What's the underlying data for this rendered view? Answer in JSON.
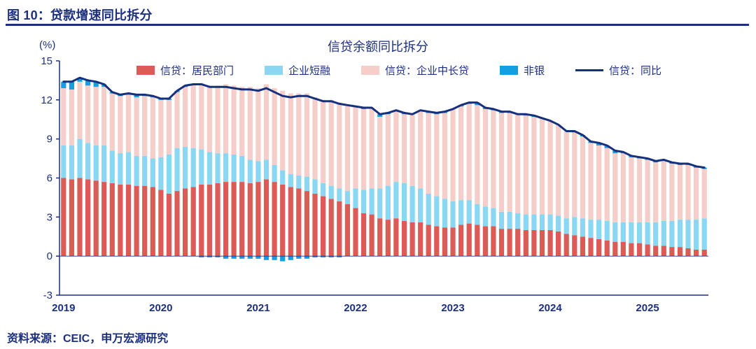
{
  "header": {
    "title": "图 10：贷款增速同比拆分"
  },
  "source": {
    "text": "资料来源：CEIC，申万宏源研究"
  },
  "chart_data": {
    "type": "bar",
    "subtype": "stacked-bar-with-line",
    "title": "信贷余额同比拆分",
    "ylabel": "(%)",
    "xlabel": "",
    "ylim": [
      -3,
      15
    ],
    "yticks": [
      15,
      12,
      9,
      6,
      3,
      0,
      -3
    ],
    "grid": false,
    "legend_position": "top",
    "axis_color": "#1d3080",
    "x_axis": {
      "tick_labels": [
        "2019",
        "2020",
        "2021",
        "2022",
        "2023",
        "2024",
        "2025"
      ],
      "n_points": 80,
      "points_per_year": 12
    },
    "series": [
      {
        "name": "信贷：居民部门",
        "type": "bar",
        "color": "#dc5b56",
        "values": [
          6.0,
          5.9,
          6.0,
          5.9,
          5.8,
          5.7,
          5.6,
          5.5,
          5.5,
          5.4,
          5.4,
          5.3,
          5.1,
          4.8,
          5.0,
          5.2,
          5.3,
          5.5,
          5.5,
          5.6,
          5.7,
          5.7,
          5.7,
          5.6,
          5.7,
          5.9,
          5.7,
          5.5,
          5.3,
          5.2,
          5.0,
          4.8,
          4.6,
          4.4,
          4.2,
          4.0,
          3.7,
          3.3,
          3.2,
          2.9,
          2.8,
          2.9,
          2.7,
          2.6,
          2.6,
          2.4,
          2.3,
          2.2,
          2.2,
          2.4,
          2.5,
          2.4,
          2.3,
          2.3,
          2.1,
          2.1,
          2.1,
          2.0,
          2.0,
          2.0,
          2.0,
          1.9,
          1.7,
          1.6,
          1.5,
          1.4,
          1.3,
          1.2,
          1.1,
          1.1,
          1.0,
          1.0,
          0.9,
          0.8,
          0.8,
          0.7,
          0.7,
          0.6,
          0.5,
          0.5
        ]
      },
      {
        "name": "企业短融",
        "type": "bar",
        "color": "#8ad7f4",
        "values": [
          2.5,
          2.6,
          3.0,
          2.8,
          2.7,
          2.8,
          2.5,
          2.4,
          2.5,
          2.3,
          2.3,
          2.2,
          2.5,
          3.0,
          3.3,
          3.2,
          3.0,
          2.7,
          2.5,
          2.3,
          2.2,
          2.1,
          2.0,
          1.8,
          1.6,
          1.5,
          1.3,
          1.1,
          1.0,
          1.0,
          1.1,
          1.1,
          1.0,
          1.0,
          1.0,
          1.0,
          1.5,
          1.8,
          2.0,
          2.3,
          2.6,
          2.8,
          2.9,
          2.8,
          2.6,
          2.4,
          2.3,
          2.2,
          2.0,
          1.9,
          1.8,
          1.6,
          1.5,
          1.4,
          1.3,
          1.3,
          1.2,
          1.2,
          1.2,
          1.2,
          1.2,
          1.2,
          1.2,
          1.4,
          1.4,
          1.4,
          1.5,
          1.5,
          1.5,
          1.5,
          1.6,
          1.6,
          1.7,
          1.8,
          1.9,
          2.0,
          2.1,
          2.2,
          2.3,
          2.4
        ]
      },
      {
        "name": "信贷：企业中长贷",
        "type": "bar",
        "color": "#f5cdc9",
        "values": [
          4.4,
          4.3,
          4.4,
          4.4,
          4.5,
          4.5,
          4.4,
          4.4,
          4.4,
          4.5,
          4.6,
          4.7,
          4.4,
          4.2,
          4.3,
          4.6,
          4.9,
          5.1,
          5.1,
          5.2,
          5.3,
          5.3,
          5.3,
          5.6,
          5.6,
          5.8,
          5.9,
          6.1,
          6.2,
          6.3,
          6.4,
          6.3,
          6.4,
          6.6,
          6.6,
          6.6,
          6.3,
          6.2,
          6.2,
          5.5,
          5.5,
          5.5,
          5.3,
          5.5,
          6.0,
          6.2,
          6.3,
          6.6,
          7.1,
          7.2,
          7.4,
          7.6,
          7.5,
          7.5,
          7.6,
          7.6,
          7.6,
          7.6,
          7.5,
          7.4,
          7.2,
          7.0,
          6.7,
          6.5,
          6.3,
          5.9,
          5.7,
          5.6,
          5.3,
          5.3,
          5.0,
          4.9,
          4.8,
          4.6,
          4.6,
          4.4,
          4.2,
          4.2,
          4.0,
          3.8
        ]
      },
      {
        "name": "非银",
        "type": "bar",
        "color": "#149fe1",
        "values": [
          0.5,
          0.6,
          0.3,
          0.4,
          0.4,
          0.2,
          0.1,
          0.1,
          0.1,
          0.2,
          0.1,
          0.1,
          0.1,
          0.1,
          0.1,
          0.1,
          0.0,
          -0.1,
          -0.1,
          -0.1,
          -0.2,
          -0.2,
          -0.2,
          -0.2,
          -0.2,
          -0.3,
          -0.3,
          -0.4,
          -0.3,
          -0.2,
          -0.2,
          -0.1,
          -0.1,
          -0.1,
          -0.1,
          0.0,
          0.0,
          0.1,
          0.0,
          0.2,
          0.1,
          0.0,
          0.1,
          0.0,
          0.0,
          0.1,
          0.1,
          0.1,
          0.0,
          0.1,
          0.1,
          0.2,
          0.1,
          0.1,
          0.1,
          0.1,
          0.0,
          0.1,
          0.1,
          0.0,
          0.0,
          0.0,
          0.0,
          0.1,
          0.1,
          0.1,
          0.2,
          0.2,
          0.2,
          0.1,
          0.1,
          0.1,
          0.1,
          0.1,
          0.1,
          0.1,
          0.1,
          0.1,
          0.1,
          0.1
        ]
      },
      {
        "name": "信贷：同比",
        "type": "line",
        "color": "#15307c",
        "values": [
          13.4,
          13.4,
          13.7,
          13.5,
          13.4,
          13.2,
          12.6,
          12.4,
          12.5,
          12.4,
          12.4,
          12.3,
          12.1,
          12.1,
          12.7,
          13.1,
          13.2,
          13.2,
          13.0,
          13.0,
          13.0,
          12.9,
          12.8,
          12.8,
          12.7,
          12.9,
          12.6,
          12.3,
          12.2,
          12.3,
          12.3,
          12.1,
          11.9,
          11.9,
          11.7,
          11.6,
          11.5,
          11.4,
          11.4,
          10.9,
          11.0,
          11.2,
          11.0,
          10.9,
          11.2,
          11.1,
          11.0,
          11.1,
          11.3,
          11.6,
          11.8,
          11.8,
          11.4,
          11.3,
          11.1,
          11.1,
          10.9,
          10.9,
          10.8,
          10.6,
          10.4,
          10.1,
          9.6,
          9.6,
          9.3,
          8.8,
          8.7,
          8.5,
          8.1,
          8.0,
          7.7,
          7.6,
          7.5,
          7.3,
          7.4,
          7.2,
          7.1,
          7.1,
          6.9,
          6.8
        ]
      }
    ]
  }
}
